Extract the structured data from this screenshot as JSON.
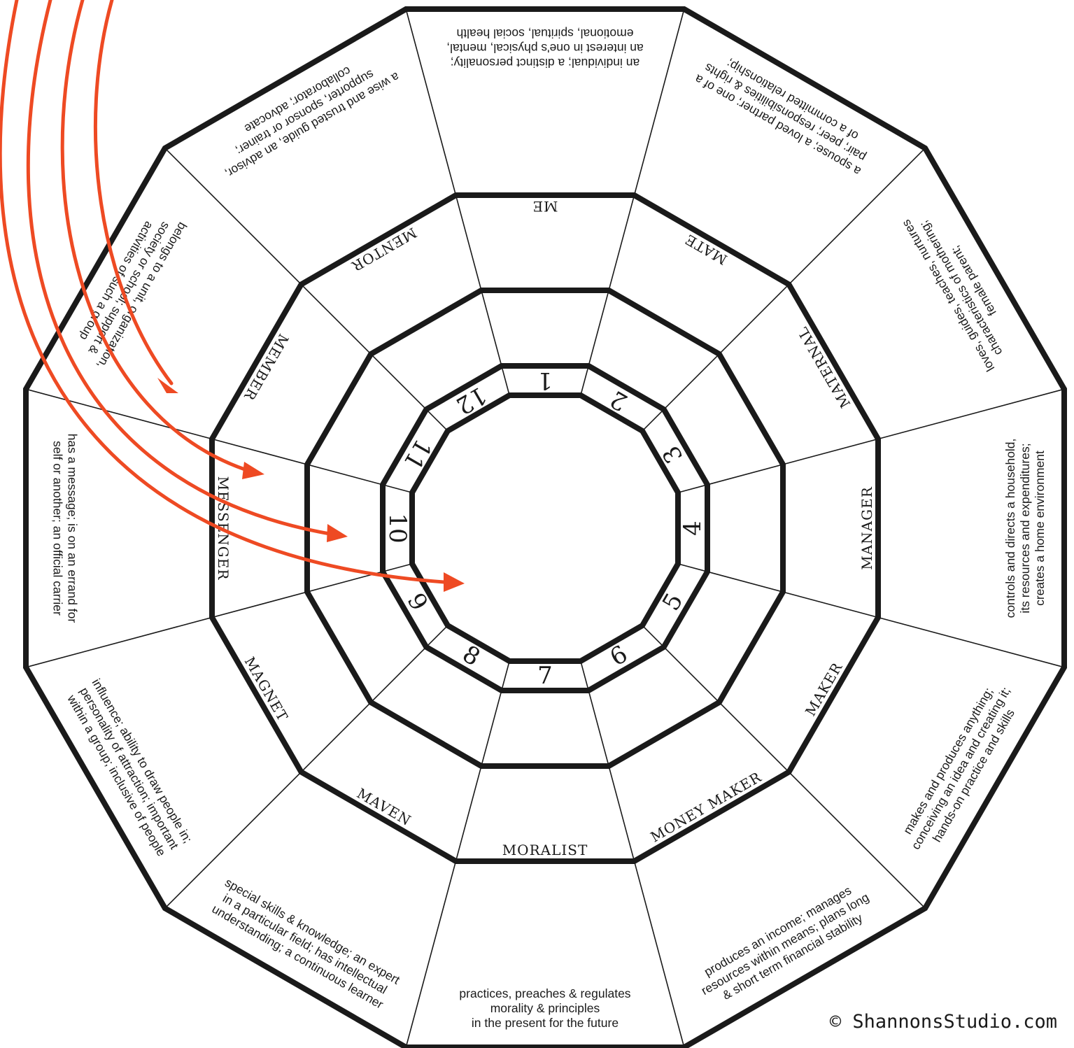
{
  "numbers": [
    "1",
    "2",
    "3",
    "4",
    "5",
    "6",
    "7",
    "8",
    "9",
    "10",
    "11",
    "12"
  ],
  "roles": [
    "ME",
    "MATE",
    "MATERNAL",
    "MANAGER",
    "MAKER",
    "MONEY MAKER",
    "MORALIST",
    "MAVEN",
    "MAGNET",
    "MESSENGER",
    "MEMBER",
    "MENTOR"
  ],
  "descriptions": [
    [
      "an individual; a distinct personality;",
      "an interest in one's physical, mental,",
      "emotional, spiritual, social health"
    ],
    [
      "a spouse; a loved partner; one of a",
      "pair; peer; responsibilities & rights",
      "of a committed relationship;"
    ],
    [
      "loves, guides, teaches, nurtures",
      "characteristics of mothering;",
      "female parent;"
    ],
    [
      "controls and directs a household,",
      "its resources and expenditures;",
      "creates a home environment"
    ],
    [
      "makes and produces anything;",
      "conceiving an idea and creating it;",
      "hands-on practice and skills"
    ],
    [
      "produces an income; manages",
      "resources within means; plans long",
      "& short term financial stability"
    ],
    [
      "practices, preaches & regulates",
      "morality & principles",
      "in the present for the future"
    ],
    [
      "special skills & knowledge; an expert",
      "in a particular field; has intellectual",
      "understanding; a continuous learner"
    ],
    [
      "influence; ability to draw people in;",
      "personality of attraction; important",
      "within a group; inclusive of people"
    ],
    [
      "has a message; is on an errand for",
      "self or another; an official carrier"
    ],
    [
      "belongs to a unit, organization,",
      "society or school; support &",
      "activities of such a group"
    ],
    [
      "a wise and trusted guide, an advisor,",
      "supporter, sponsor or trainer;",
      "collaborator; advocate"
    ]
  ],
  "copyright": "© ShannonsStudio.com",
  "colors": {
    "ink": "#1a1a1a",
    "arrow": "#ee4a23",
    "background": "#ffffff"
  }
}
